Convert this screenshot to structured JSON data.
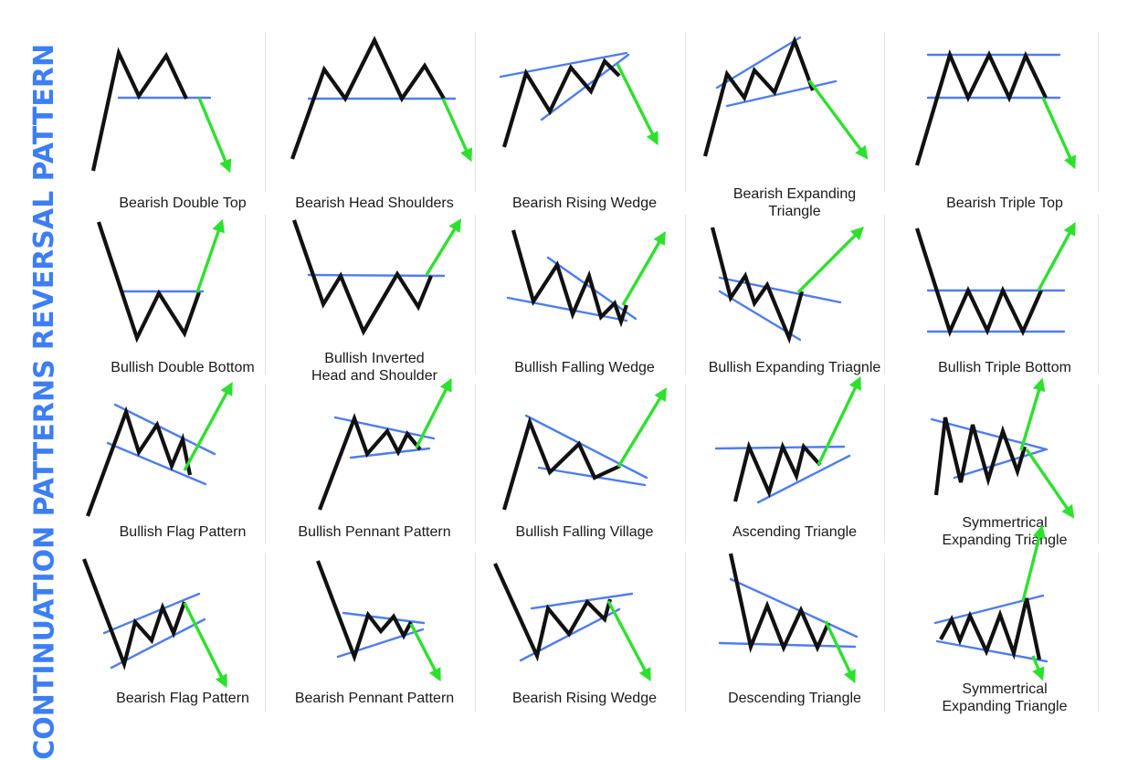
{
  "colors": {
    "price_line": "#111111",
    "trend_line": "#4f7cf0",
    "breakout_arrow": "#2ee02e",
    "section_label": "#3d7ef5"
  },
  "sections": {
    "reversal": {
      "label": "REVERSAL PATTERN"
    },
    "continuation": {
      "label": "CONTINUATION PATTERNS"
    }
  },
  "patterns": [
    {
      "name": "Bearish Double Top"
    },
    {
      "name": "Bearish Head Shoulders"
    },
    {
      "name": "Bearish Rising Wedge"
    },
    {
      "name": "Bearish Expanding\nTriangle"
    },
    {
      "name": "Bearish Triple Top"
    },
    {
      "name": "Bullish Double Bottom"
    },
    {
      "name": "Bullish Inverted\nHead and Shoulder"
    },
    {
      "name": "Bullish Falling Wedge"
    },
    {
      "name": "Bullish Expanding Triagnle"
    },
    {
      "name": "Bullish Triple Bottom"
    },
    {
      "name": "Bullish Flag Pattern"
    },
    {
      "name": "Bullish Pennant Pattern"
    },
    {
      "name": "Bullish Falling Village"
    },
    {
      "name": "Ascending Triangle"
    },
    {
      "name": "Symmertrical\nExpanding Triangle"
    },
    {
      "name": "Bearish Flag Pattern"
    },
    {
      "name": "Bearish Pennant Pattern"
    },
    {
      "name": "Bearish Rising Wedge"
    },
    {
      "name": "Descending Triangle"
    },
    {
      "name": "Symmertrical\nExpanding Triangle"
    }
  ]
}
